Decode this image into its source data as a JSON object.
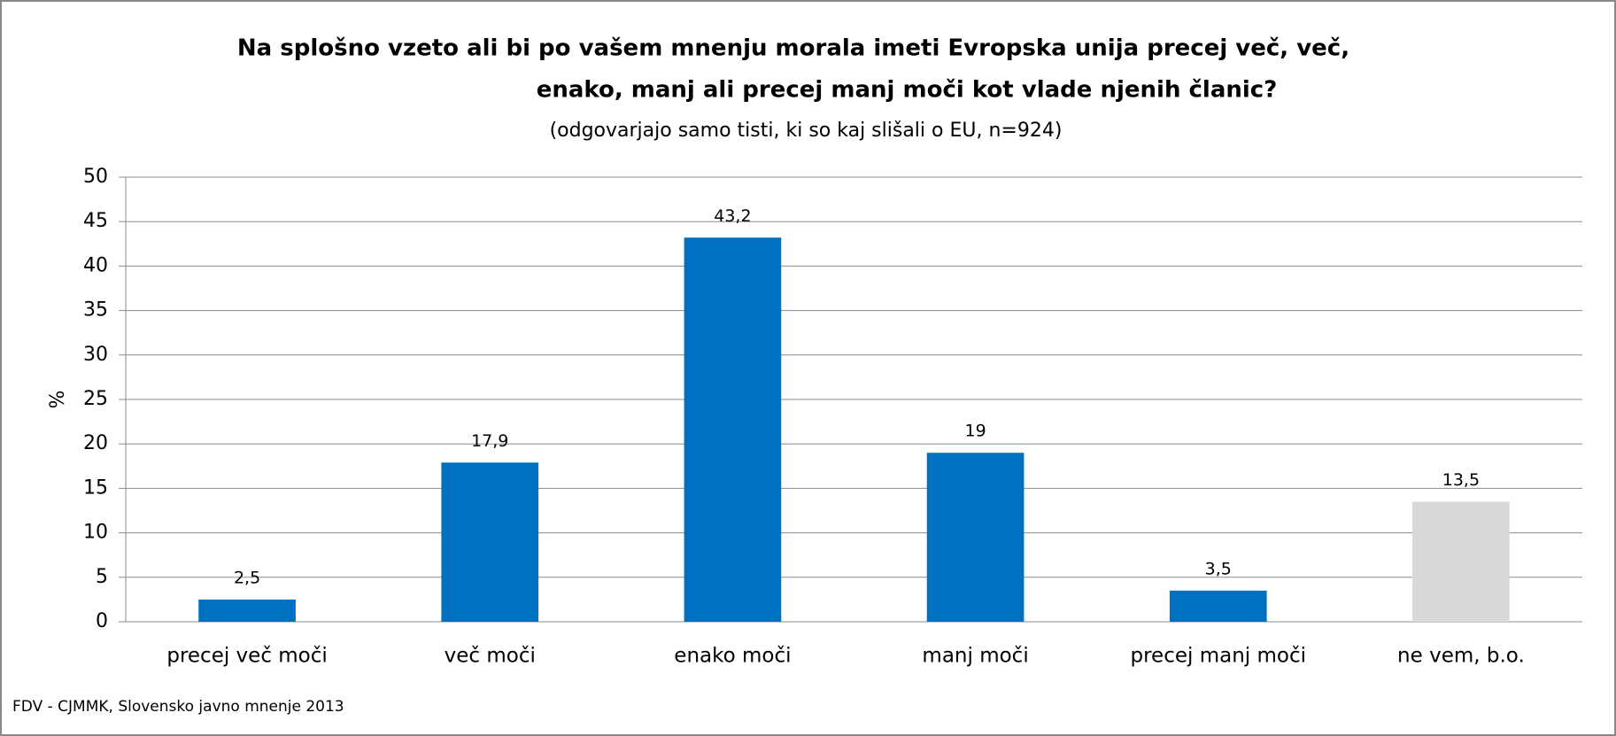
{
  "chart_data": {
    "type": "bar",
    "title": [
      "Na splošno vzeto ali bi po vašem mnenju morala imeti Evropska unija precej več, več,",
      "enako, manj ali precej manj moči kot vlade njenih članic?"
    ],
    "subtitle": "(odgovarjajo samo tisti, ki so kaj slišali o EU, n=924)",
    "ylabel": "%",
    "source": "FDV - CJMMK, Slovensko javno mnenje 2013",
    "categories": [
      "precej več moči",
      "več moči",
      "enako moči",
      "manj moči",
      "precej manj moči",
      "ne vem, b.o."
    ],
    "values": [
      2.5,
      17.9,
      43.2,
      19,
      3.5,
      13.5
    ],
    "value_labels": [
      "2,5",
      "17,9",
      "43,2",
      "19",
      "3,5",
      "13,5"
    ],
    "colors": [
      "#0070c0",
      "#0070c0",
      "#0070c0",
      "#0070c0",
      "#0070c0",
      "#d9d9d9"
    ],
    "ylim": [
      0,
      50
    ],
    "yticks": [
      0,
      5,
      10,
      15,
      20,
      25,
      30,
      35,
      40,
      45,
      50
    ],
    "grid": true
  }
}
